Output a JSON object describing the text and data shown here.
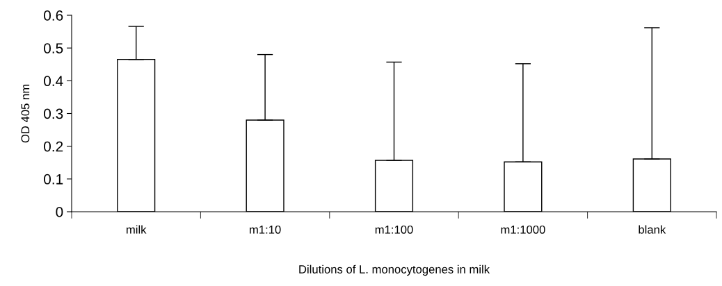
{
  "chart_data": {
    "type": "bar",
    "xlabel": "Dilutions of L. monocytogenes in milk",
    "ylabel": "OD 405 nm",
    "categories": [
      "milk",
      "m1:10",
      "m1:100",
      "m1:1000",
      "blank"
    ],
    "values": [
      0.465,
      0.28,
      0.157,
      0.152,
      0.161
    ],
    "errors": [
      [
        0.465,
        0.566
      ],
      [
        0.28,
        0.48
      ],
      [
        0.157,
        0.457
      ],
      [
        0.152,
        0.452
      ],
      [
        0.161,
        0.562
      ]
    ],
    "color": "#ffffff",
    "ylim": [
      0,
      0.6
    ],
    "yticks": [
      0,
      0.1,
      0.2,
      0.3,
      0.4,
      0.5,
      0.6
    ],
    "grid": false,
    "legend": false
  }
}
